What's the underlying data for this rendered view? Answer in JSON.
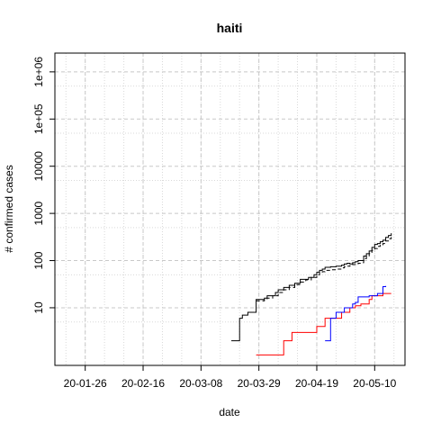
{
  "chart_data": {
    "type": "line",
    "title": "haiti",
    "xlabel": "date",
    "ylabel": "# confirmed cases",
    "x_axis": {
      "type": "date",
      "range": [
        "2020-01-15",
        "2020-05-21"
      ],
      "ticks": [
        {
          "date": "2020-01-26",
          "label": "20-01-26"
        },
        {
          "date": "2020-02-16",
          "label": "20-02-16"
        },
        {
          "date": "2020-03-08",
          "label": "20-03-08"
        },
        {
          "date": "2020-03-29",
          "label": "20-03-29"
        },
        {
          "date": "2020-04-19",
          "label": "20-04-19"
        },
        {
          "date": "2020-05-10",
          "label": "20-05-10"
        }
      ],
      "minor_grid_every_days": 7
    },
    "y_axis": {
      "scale": "log",
      "range": [
        0.6,
        2500000
      ],
      "ticks": [
        {
          "value": 10,
          "label": "10"
        },
        {
          "value": 100,
          "label": "100"
        },
        {
          "value": 1000,
          "label": "1000"
        },
        {
          "value": 10000,
          "label": "10000"
        },
        {
          "value": 100000,
          "label": "1e+05"
        },
        {
          "value": 1000000,
          "label": "1e+06"
        }
      ]
    },
    "grid": true,
    "series": [
      {
        "color": "#000000",
        "dash": "solid",
        "step": true,
        "points": [
          [
            "2020-03-19",
            2
          ],
          [
            "2020-03-21",
            2
          ],
          [
            "2020-03-22",
            6
          ],
          [
            "2020-03-23",
            7
          ],
          [
            "2020-03-25",
            8
          ],
          [
            "2020-03-27",
            8
          ],
          [
            "2020-03-28",
            15
          ],
          [
            "2020-03-31",
            16
          ],
          [
            "2020-04-01",
            18
          ],
          [
            "2020-04-04",
            21
          ],
          [
            "2020-04-05",
            24
          ],
          [
            "2020-04-07",
            27
          ],
          [
            "2020-04-09",
            30
          ],
          [
            "2020-04-11",
            33
          ],
          [
            "2020-04-13",
            40
          ],
          [
            "2020-04-16",
            44
          ],
          [
            "2020-04-18",
            50
          ],
          [
            "2020-04-19",
            57
          ],
          [
            "2020-04-20",
            62
          ],
          [
            "2020-04-21",
            66
          ],
          [
            "2020-04-22",
            72
          ],
          [
            "2020-04-24",
            74
          ],
          [
            "2020-04-26",
            76
          ],
          [
            "2020-04-28",
            80
          ],
          [
            "2020-04-29",
            85
          ],
          [
            "2020-04-30",
            88
          ],
          [
            "2020-05-01",
            85
          ],
          [
            "2020-05-02",
            90
          ],
          [
            "2020-05-03",
            95
          ],
          [
            "2020-05-04",
            100
          ],
          [
            "2020-05-05",
            100
          ],
          [
            "2020-05-06",
            125
          ],
          [
            "2020-05-07",
            140
          ],
          [
            "2020-05-08",
            160
          ],
          [
            "2020-05-09",
            190
          ],
          [
            "2020-05-10",
            220
          ],
          [
            "2020-05-11",
            230
          ],
          [
            "2020-05-12",
            250
          ],
          [
            "2020-05-13",
            270
          ],
          [
            "2020-05-14",
            310
          ],
          [
            "2020-05-15",
            340
          ],
          [
            "2020-05-16",
            380
          ]
        ]
      },
      {
        "color": "#000000",
        "dash": "dashed",
        "step": true,
        "points": [
          [
            "2020-03-28",
            14
          ],
          [
            "2020-03-31",
            15
          ],
          [
            "2020-04-01",
            16
          ],
          [
            "2020-04-03",
            18
          ],
          [
            "2020-04-05",
            21
          ],
          [
            "2020-04-07",
            24
          ],
          [
            "2020-04-09",
            27
          ],
          [
            "2020-04-11",
            31
          ],
          [
            "2020-04-13",
            35
          ],
          [
            "2020-04-15",
            39
          ],
          [
            "2020-04-17",
            44
          ],
          [
            "2020-04-19",
            50
          ],
          [
            "2020-04-20",
            55
          ],
          [
            "2020-04-21",
            58
          ],
          [
            "2020-04-22",
            62
          ],
          [
            "2020-04-24",
            64
          ],
          [
            "2020-04-26",
            66
          ],
          [
            "2020-04-28",
            70
          ],
          [
            "2020-04-29",
            74
          ],
          [
            "2020-04-30",
            76
          ],
          [
            "2020-05-01",
            78
          ],
          [
            "2020-05-02",
            82
          ],
          [
            "2020-05-03",
            85
          ],
          [
            "2020-05-04",
            88
          ],
          [
            "2020-05-05",
            90
          ],
          [
            "2020-05-06",
            110
          ],
          [
            "2020-05-07",
            120
          ],
          [
            "2020-05-08",
            140
          ],
          [
            "2020-05-09",
            165
          ],
          [
            "2020-05-10",
            180
          ],
          [
            "2020-05-11",
            200
          ],
          [
            "2020-05-12",
            215
          ],
          [
            "2020-05-13",
            230
          ],
          [
            "2020-05-14",
            260
          ],
          [
            "2020-05-15",
            290
          ],
          [
            "2020-05-16",
            320
          ]
        ]
      },
      {
        "color": "#ff0000",
        "dash": "solid",
        "step": true,
        "points": [
          [
            "2020-03-28",
            1
          ],
          [
            "2020-04-06",
            1
          ],
          [
            "2020-04-07",
            2
          ],
          [
            "2020-04-09",
            2
          ],
          [
            "2020-04-10",
            3
          ],
          [
            "2020-04-18",
            3
          ],
          [
            "2020-04-19",
            4
          ],
          [
            "2020-04-21",
            4
          ],
          [
            "2020-04-22",
            6
          ],
          [
            "2020-04-27",
            6
          ],
          [
            "2020-04-28",
            8
          ],
          [
            "2020-04-30",
            8
          ],
          [
            "2020-05-01",
            10
          ],
          [
            "2020-05-03",
            11
          ],
          [
            "2020-05-05",
            12
          ],
          [
            "2020-05-07",
            12
          ],
          [
            "2020-05-08",
            15
          ],
          [
            "2020-05-09",
            18
          ],
          [
            "2020-05-12",
            18
          ],
          [
            "2020-05-13",
            20
          ],
          [
            "2020-05-16",
            20
          ]
        ]
      },
      {
        "color": "#0000ff",
        "dash": "solid",
        "step": true,
        "points": [
          [
            "2020-04-22",
            2
          ],
          [
            "2020-04-23",
            2
          ],
          [
            "2020-04-24",
            6
          ],
          [
            "2020-04-25",
            6
          ],
          [
            "2020-04-26",
            8
          ],
          [
            "2020-04-28",
            8
          ],
          [
            "2020-04-29",
            10
          ],
          [
            "2020-05-01",
            10
          ],
          [
            "2020-05-02",
            12
          ],
          [
            "2020-05-03",
            13
          ],
          [
            "2020-05-04",
            17
          ],
          [
            "2020-05-07",
            17
          ],
          [
            "2020-05-08",
            18
          ],
          [
            "2020-05-10",
            18
          ],
          [
            "2020-05-11",
            20
          ],
          [
            "2020-05-12",
            20
          ],
          [
            "2020-05-13",
            28
          ],
          [
            "2020-05-14",
            29
          ]
        ]
      }
    ]
  }
}
